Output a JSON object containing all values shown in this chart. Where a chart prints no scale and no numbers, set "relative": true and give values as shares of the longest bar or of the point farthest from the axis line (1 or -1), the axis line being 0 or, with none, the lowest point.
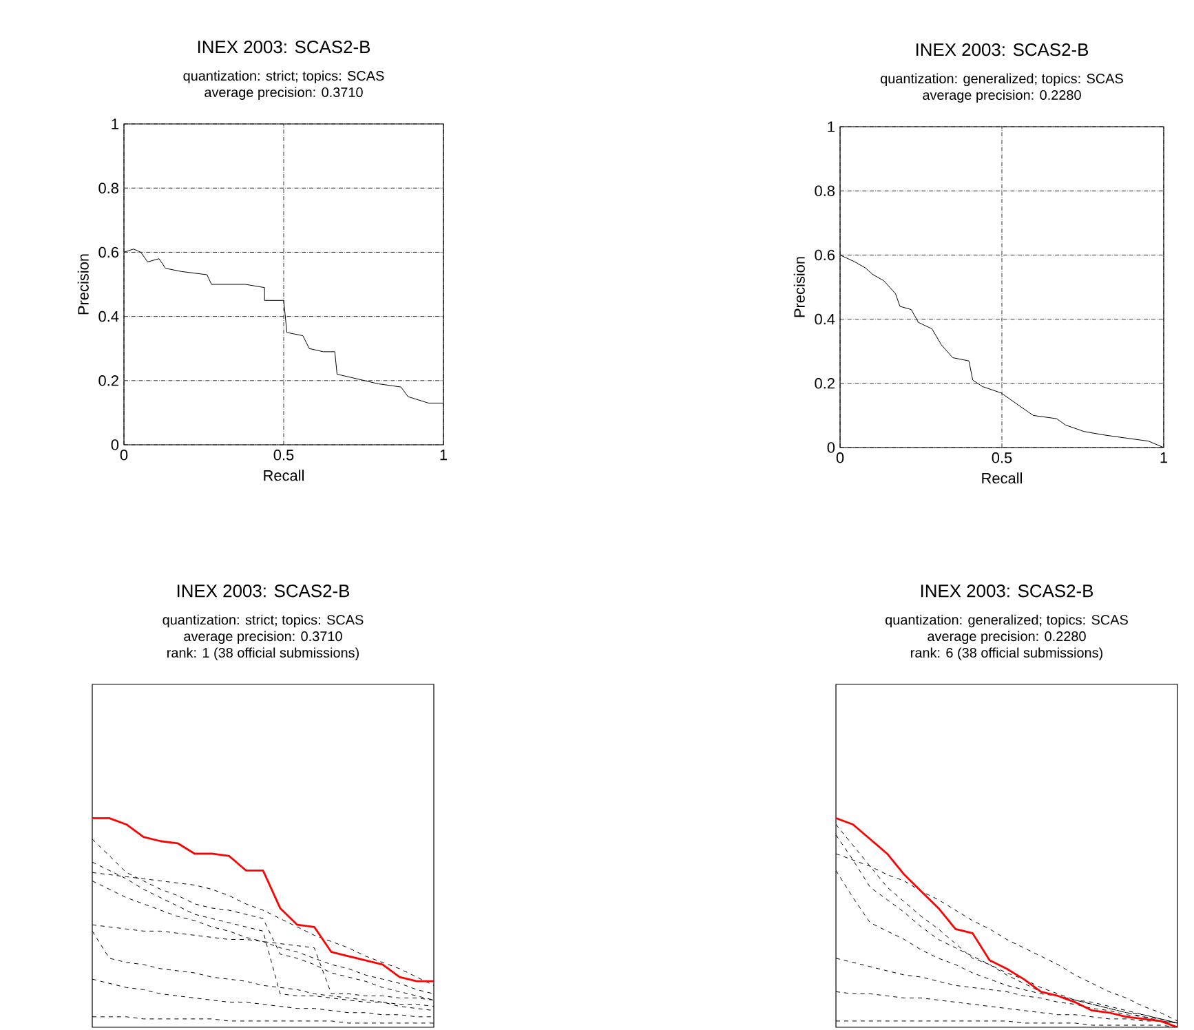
{
  "chart_data": [
    {
      "type": "line",
      "title": "INEX 2003: SCAS2-B",
      "subtitle": "quantization: strict; topics: SCAS",
      "annotations": [
        "average precision: 0.3710"
      ],
      "xlabel": "Recall",
      "ylabel": "Precision",
      "xlim": [
        0,
        1
      ],
      "ylim": [
        0,
        1
      ],
      "xticks": [
        0,
        0.5,
        1
      ],
      "yticks": [
        0,
        0.2,
        0.4,
        0.6,
        0.8,
        1
      ],
      "grid": true,
      "series": [
        {
          "color": "#000000",
          "x": [
            0,
            0.03,
            0.053,
            0.074,
            0.11,
            0.13,
            0.18,
            0.26,
            0.274,
            0.38,
            0.44,
            0.44,
            0.5,
            0.51,
            0.56,
            0.58,
            0.624,
            0.66,
            0.667,
            0.71,
            0.753,
            0.796,
            0.867,
            0.889,
            0.953,
            1
          ],
          "values": [
            0.6,
            0.61,
            0.6,
            0.57,
            0.58,
            0.55,
            0.54,
            0.53,
            0.5,
            0.5,
            0.49,
            0.45,
            0.45,
            0.35,
            0.34,
            0.3,
            0.29,
            0.29,
            0.22,
            0.21,
            0.2,
            0.19,
            0.18,
            0.15,
            0.13,
            0.13
          ]
        }
      ]
    },
    {
      "type": "line",
      "title": "INEX 2003: SCAS2-B",
      "subtitle": "quantization: generalized; topics: SCAS",
      "annotations": [
        "average precision: 0.2280"
      ],
      "xlabel": "Recall",
      "ylabel": "Precision",
      "xlim": [
        0,
        1
      ],
      "ylim": [
        0,
        1
      ],
      "xticks": [
        0,
        0.5,
        1
      ],
      "yticks": [
        0,
        0.2,
        0.4,
        0.6,
        0.8,
        1
      ],
      "grid": true,
      "series": [
        {
          "color": "#000000",
          "x": [
            0,
            0.043,
            0.078,
            0.1,
            0.135,
            0.171,
            0.185,
            0.22,
            0.242,
            0.284,
            0.313,
            0.348,
            0.398,
            0.41,
            0.44,
            0.498,
            0.54,
            0.597,
            0.669,
            0.697,
            0.754,
            0.81,
            0.88,
            0.953,
            1
          ],
          "values": [
            0.6,
            0.58,
            0.56,
            0.54,
            0.52,
            0.48,
            0.44,
            0.43,
            0.39,
            0.37,
            0.32,
            0.28,
            0.27,
            0.21,
            0.19,
            0.17,
            0.14,
            0.1,
            0.09,
            0.07,
            0.05,
            0.04,
            0.03,
            0.02,
            0
          ]
        }
      ]
    },
    {
      "type": "line",
      "title": "INEX 2003: SCAS2-B",
      "subtitle": "quantization: strict; topics: SCAS",
      "annotations": [
        "average precision: 0.3710",
        "rank: 1 (38 official submissions)"
      ],
      "relative": true,
      "categories": [
        null,
        null,
        null,
        null,
        null,
        null,
        null,
        null,
        null,
        null,
        null,
        null,
        null,
        null,
        null,
        null,
        null,
        null,
        null,
        null,
        null
      ],
      "series": [
        {
          "color": "#000000",
          "line_style": "dashed",
          "values": [
            0.74,
            0.73,
            0.72,
            0.71,
            0.7,
            0.69,
            0.68,
            0.66,
            0.63,
            0.59,
            0.56,
            0.52,
            0.48,
            0.44,
            0.41,
            0.38,
            0.34,
            0.31,
            0.28,
            0.24,
            0.2
          ]
        },
        {
          "color": "#000000",
          "line_style": "dashed",
          "values": [
            0.9,
            0.82,
            0.74,
            0.7,
            0.66,
            0.63,
            0.59,
            0.57,
            0.56,
            0.54,
            0.52,
            0.35,
            0.33,
            0.3,
            0.26,
            0.24,
            0.22,
            0.19,
            0.17,
            0.15,
            0.13
          ]
        },
        {
          "color": "#000000",
          "line_style": "dashed",
          "values": [
            0.7,
            0.66,
            0.62,
            0.59,
            0.56,
            0.53,
            0.51,
            0.48,
            0.46,
            0.43,
            0.41,
            0.38,
            0.36,
            0.33,
            0.3,
            0.28,
            0.25,
            0.23,
            0.21,
            0.18,
            0.16
          ]
        },
        {
          "color": "#000000",
          "line_style": "dashed",
          "values": [
            0.46,
            0.33,
            0.31,
            0.3,
            0.28,
            0.27,
            0.26,
            0.24,
            0.23,
            0.22,
            0.2,
            0.19,
            0.18,
            0.16,
            0.15,
            0.14,
            0.13,
            0.12,
            0.1,
            0.09,
            0.08
          ]
        },
        {
          "color": "#000000",
          "line_style": "dashed",
          "values": [
            0.23,
            0.21,
            0.19,
            0.18,
            0.16,
            0.15,
            0.14,
            0.13,
            0.12,
            0.12,
            0.11,
            0.1,
            0.09,
            0.09,
            0.08,
            0.07,
            0.07,
            0.06,
            0.06,
            0.05,
            0.05
          ]
        },
        {
          "color": "#000000",
          "line_style": "dashed",
          "values": [
            0.49,
            0.48,
            0.47,
            0.46,
            0.46,
            0.45,
            0.44,
            0.43,
            0.42,
            0.42,
            0.41,
            0.4,
            0.39,
            0.38,
            0.16,
            0.16,
            0.15,
            0.15,
            0.14,
            0.14,
            0.13
          ]
        },
        {
          "color": "#000000",
          "line_style": "dashed",
          "values": [
            0.05,
            0.05,
            0.05,
            0.04,
            0.04,
            0.04,
            0.04,
            0.04,
            0.03,
            0.03,
            0.03,
            0.03,
            0.03,
            0.03,
            0.03,
            0.02,
            0.02,
            0.02,
            0.02,
            0.02,
            0.02
          ]
        },
        {
          "color": "#000000",
          "line_style": "dashed",
          "values": [
            0.79,
            0.75,
            0.71,
            0.66,
            0.62,
            0.58,
            0.54,
            0.52,
            0.5,
            0.48,
            0.46,
            0.16,
            0.15,
            0.15,
            0.14,
            0.13,
            0.12,
            0.12,
            0.11,
            0.11,
            0.1
          ]
        },
        {
          "color": "#ff0000",
          "values": [
            1,
            1,
            0.97,
            0.91,
            0.89,
            0.88,
            0.83,
            0.83,
            0.82,
            0.75,
            0.75,
            0.57,
            0.49,
            0.48,
            0.36,
            0.34,
            0.32,
            0.3,
            0.24,
            0.22,
            0.22
          ]
        }
      ]
    },
    {
      "type": "line",
      "title": "INEX 2003: SCAS2-B",
      "subtitle": "quantization: generalized; topics: SCAS",
      "annotations": [
        "average precision: 0.2280",
        "rank: 6 (38 official submissions)"
      ],
      "relative": true,
      "categories": [
        null,
        null,
        null,
        null,
        null,
        null,
        null,
        null,
        null,
        null,
        null,
        null,
        null,
        null,
        null,
        null,
        null,
        null,
        null,
        null,
        null
      ],
      "series": [
        {
          "color": "#000000",
          "line_style": "dashed",
          "values": [
            0.83,
            0.8,
            0.77,
            0.73,
            0.7,
            0.65,
            0.61,
            0.56,
            0.51,
            0.47,
            0.42,
            0.38,
            0.34,
            0.3,
            0.25,
            0.21,
            0.17,
            0.14,
            0.1,
            0.07,
            0.03
          ]
        },
        {
          "color": "#000000",
          "line_style": "dashed",
          "values": [
            0.92,
            0.8,
            0.67,
            0.61,
            0.55,
            0.48,
            0.42,
            0.38,
            0.34,
            0.3,
            0.25,
            0.21,
            0.17,
            0.15,
            0.13,
            0.12,
            0.1,
            0.08,
            0.06,
            0.04,
            0.02
          ]
        },
        {
          "color": "#000000",
          "line_style": "dashed",
          "values": [
            0.75,
            0.62,
            0.5,
            0.46,
            0.42,
            0.37,
            0.33,
            0.3,
            0.26,
            0.23,
            0.2,
            0.18,
            0.16,
            0.15,
            0.13,
            0.11,
            0.09,
            0.07,
            0.05,
            0.04,
            0.02
          ]
        },
        {
          "color": "#000000",
          "line_style": "dashed",
          "values": [
            0.33,
            0.31,
            0.29,
            0.27,
            0.25,
            0.24,
            0.22,
            0.2,
            0.19,
            0.18,
            0.17,
            0.15,
            0.14,
            0.12,
            0.11,
            0.09,
            0.08,
            0.06,
            0.05,
            0.03,
            0.02
          ]
        },
        {
          "color": "#000000",
          "line_style": "dashed",
          "values": [
            0.17,
            0.16,
            0.16,
            0.15,
            0.14,
            0.14,
            0.13,
            0.12,
            0.11,
            0.1,
            0.09,
            0.08,
            0.07,
            0.06,
            0.06,
            0.05,
            0.04,
            0.04,
            0.03,
            0.03,
            0.02
          ]
        },
        {
          "color": "#000000",
          "line_style": "dashed",
          "values": [
            0.03,
            0.03,
            0.03,
            0.03,
            0.03,
            0.03,
            0.03,
            0.03,
            0.03,
            0.03,
            0.03,
            0.02,
            0.02,
            0.02,
            0.02,
            0.01,
            0.01,
            0.01,
            0.01,
            0.01,
            0
          ]
        },
        {
          "color": "#000000",
          "line_style": "dashed",
          "values": [
            0.97,
            0.87,
            0.77,
            0.67,
            0.6,
            0.53,
            0.47,
            0.4,
            0.33,
            0.3,
            0.26,
            0.23,
            0.19,
            0.16,
            0.13,
            0.11,
            0.09,
            0.07,
            0.06,
            0.04,
            0.02
          ]
        },
        {
          "color": "#ff0000",
          "values": [
            1,
            0.97,
            0.9,
            0.83,
            0.73,
            0.65,
            0.57,
            0.47,
            0.45,
            0.32,
            0.28,
            0.23,
            0.17,
            0.15,
            0.12,
            0.08,
            0.07,
            0.05,
            0.04,
            0.03,
            0
          ]
        }
      ]
    }
  ]
}
